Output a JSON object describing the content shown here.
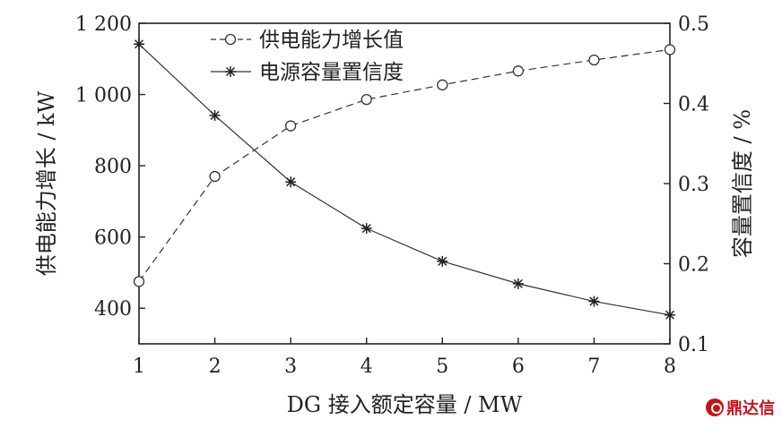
{
  "chart_data": {
    "type": "line",
    "xlabel": "DG 接入额定容量 / MW",
    "ylabel_left": "供电能力增长 / kW",
    "ylabel_right": "容量置信度 / %",
    "x_ticks": [
      "1",
      "2",
      "3",
      "4",
      "5",
      "6",
      "7",
      "8"
    ],
    "y_left_ticks": [
      "400",
      "600",
      "800",
      "1 000",
      "1 200"
    ],
    "y_right_ticks": [
      "0.1",
      "0.2",
      "0.3",
      "0.4",
      "0.5"
    ],
    "xlim": [
      1,
      8
    ],
    "y_left_lim": [
      300,
      1200
    ],
    "y_right_lim": [
      0.1,
      0.5
    ],
    "legend_position": "top-center",
    "series": [
      {
        "name": "供电能力增长值",
        "axis": "left",
        "style": "dashed",
        "marker": "circle",
        "color": "#333333",
        "x": [
          1,
          2,
          3,
          4,
          5,
          6,
          7,
          8
        ],
        "values": [
          475,
          770,
          912,
          986,
          1027,
          1066,
          1097,
          1126
        ]
      },
      {
        "name": "电源容量置信度",
        "axis": "right",
        "style": "solid",
        "marker": "asterisk",
        "color": "#333333",
        "x": [
          1,
          2,
          3,
          4,
          5,
          6,
          7,
          8
        ],
        "values": [
          0.474,
          0.385,
          0.302,
          0.244,
          0.203,
          0.175,
          0.153,
          0.136
        ]
      }
    ]
  },
  "watermark": {
    "text": "鼎达信"
  }
}
